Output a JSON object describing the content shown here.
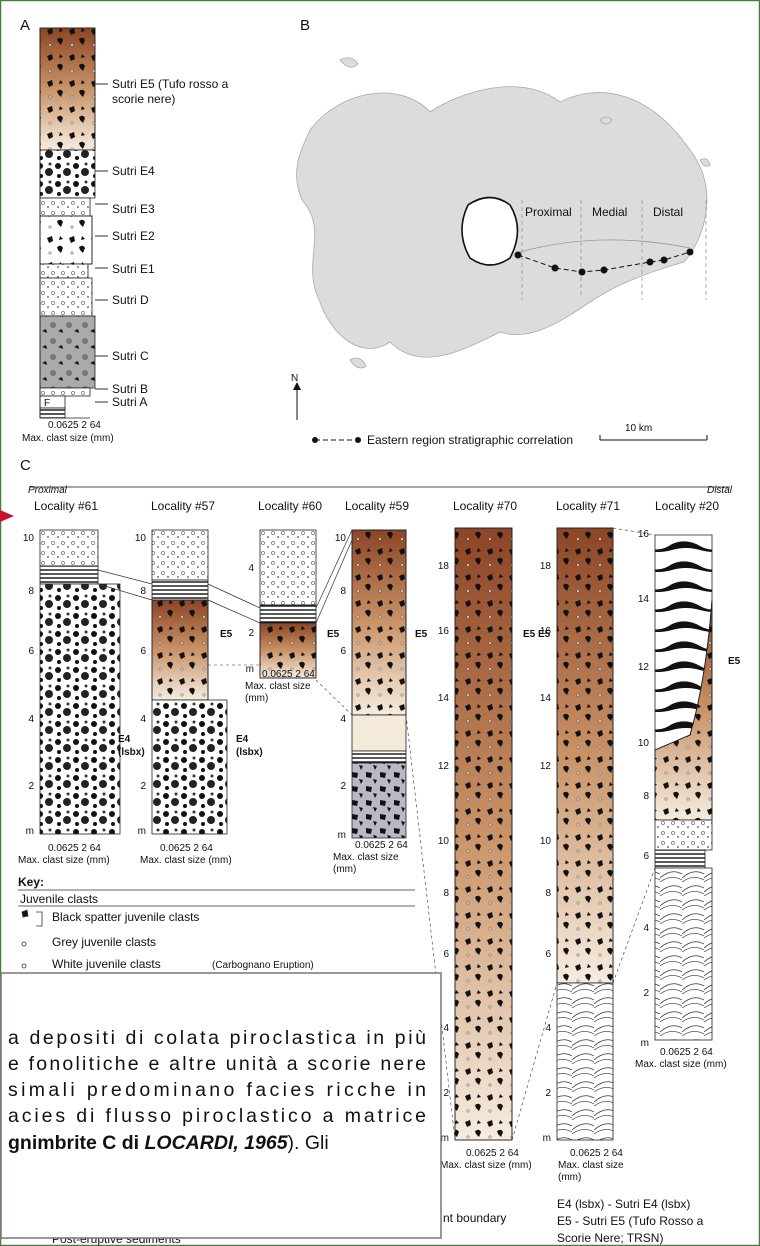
{
  "panel_a": {
    "letter": "A",
    "units": [
      [
        "Sutri E5 (Tufo rosso a",
        "scorie nere)"
      ],
      [
        "Sutri E4"
      ],
      [
        "Sutri E3"
      ],
      [
        "Sutri E2"
      ],
      [
        "Sutri E1"
      ],
      [
        "Sutri D"
      ],
      [
        "Sutri C"
      ],
      [
        "Sutri B"
      ],
      [
        "Sutri A"
      ]
    ],
    "f_label": "F"
  },
  "clast_axis": "0.0625  2  64",
  "clast_title": "Max. clast size (mm)",
  "clast_title_wrapped": [
    "Max. clast size",
    "(mm)"
  ],
  "panel_b": {
    "letter": "B",
    "zones": [
      "Proximal",
      "Medial",
      "Distal"
    ],
    "north": "N",
    "legend": "Eastern region stratigraphic correlation",
    "scale": "10 km"
  },
  "panel_c": {
    "letter": "C",
    "proximal": "Proximal",
    "distal": "Distal",
    "localities": [
      {
        "name": "Locality #61",
        "ticks": [
          "10",
          "8",
          "6",
          "4",
          "2",
          "m"
        ],
        "units": [
          [
            "E4",
            "(lsbx)"
          ]
        ]
      },
      {
        "name": "Locality #57",
        "ticks": [
          "10",
          "8",
          "6",
          "4",
          "2",
          "m"
        ],
        "units": [
          [
            "E5"
          ],
          [
            "E4",
            "(lsbx)"
          ]
        ]
      },
      {
        "name": "Locality #60",
        "ticks": [
          "4",
          "2",
          "m"
        ],
        "units": [
          [
            "E5"
          ]
        ]
      },
      {
        "name": "Locality #59",
        "ticks": [
          "10",
          "8",
          "6",
          "4",
          "2",
          "m"
        ],
        "units": [
          [
            "E5"
          ]
        ]
      },
      {
        "name": "Locality #70",
        "ticks": [
          "18",
          "16",
          "14",
          "12",
          "10",
          "8",
          "6",
          "4",
          "2",
          "m"
        ],
        "units": [
          [
            "E5"
          ]
        ]
      },
      {
        "name": "Locality #71",
        "ticks": [
          "18",
          "16",
          "14",
          "12",
          "10",
          "8",
          "6",
          "4",
          "2",
          "m"
        ],
        "units": [
          [
            "E5"
          ]
        ]
      },
      {
        "name": "Locality #20",
        "ticks": [
          "16",
          "14",
          "12",
          "10",
          "8",
          "6",
          "4",
          "2",
          "m"
        ],
        "units": [
          [
            "E5"
          ]
        ]
      }
    ]
  },
  "key": {
    "title": "Key:",
    "group": "Juvenile clasts",
    "items": [
      "Black spatter juvenile clasts",
      "Grey juvenile clasts",
      "White juvenile clasts"
    ],
    "items_note": "(Carbognano Eruption)",
    "partial": [
      "nt boundary",
      "Post-eruptive sediments"
    ],
    "abbrev": [
      "E4 (lsbx) - Sutri E4 (lsbx)",
      "E5 - Sutri E5 (Tufo Rosso a",
      "Scorie Nere; TRSN)"
    ]
  },
  "overlay": {
    "lines": [
      "a depositi di colata piroclastica in più",
      "e fonolitiche e altre unità a scorie nere",
      "simali predominano facies ricche in",
      "acies di flusso piroclastico a matrice"
    ],
    "last_line": [
      "gnimbrite C di ",
      "LOCARDI, 1965",
      "). Gli"
    ]
  }
}
